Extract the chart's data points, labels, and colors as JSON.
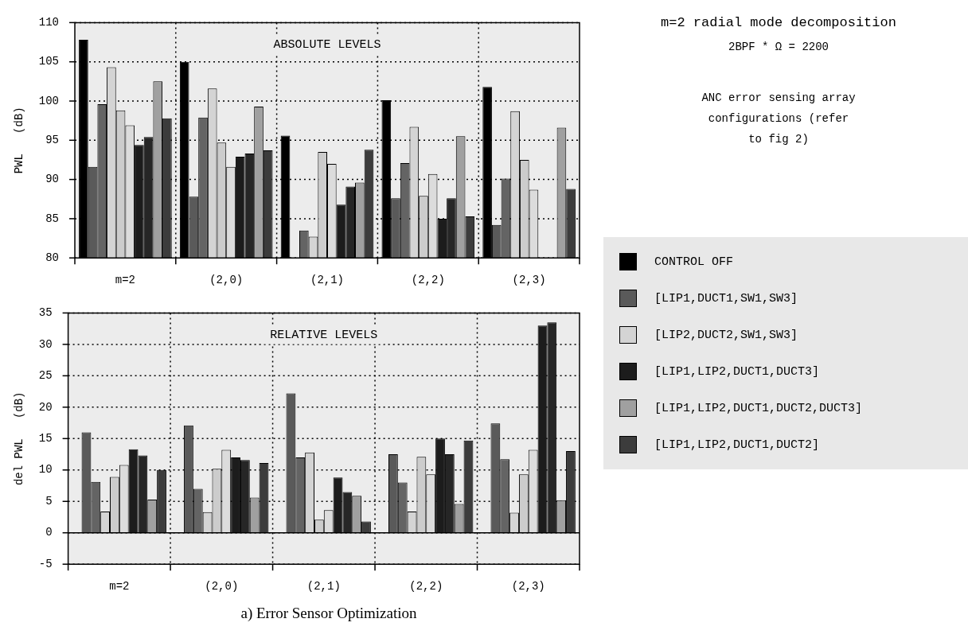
{
  "chart_data": [
    {
      "type": "bar",
      "ylabel": "PWL   (dB)",
      "categories": [
        "m=2",
        "(2,0)",
        "(2,1)",
        "(2,2)",
        "(2,3)"
      ],
      "ylim": [
        80,
        110
      ],
      "yticks": [
        80,
        85,
        90,
        95,
        100,
        105,
        110
      ],
      "grid": true,
      "legend": "right",
      "annotations": [
        "ABSOLUTE LEVELS",
        "m=2 radial mode decomposition",
        "2BPF * Ω = 2200",
        "ANC error sensing array configurations (refer to fig 2)"
      ],
      "series": [
        {
          "name": "CONTROL OFF",
          "color": "#000000",
          "values": [
            107.8,
            105.0,
            95.6,
            100.1,
            101.8
          ]
        },
        {
          "name": "[LIP1,DUCT1,SW1,SW3]",
          "color": "#5a5a5a",
          "values": [
            91.6,
            87.8,
            null,
            87.6,
            84.2
          ]
        },
        {
          "color": "#646464",
          "values": [
            99.6,
            97.9,
            83.5,
            92.1,
            90.1
          ]
        },
        {
          "name": "[LIP2,DUCT2,SW1,SW3]",
          "color": "#d4d4d4",
          "values": [
            104.3,
            101.6,
            82.7,
            96.7,
            98.7
          ]
        },
        {
          "color": "#cccccc",
          "values": [
            98.8,
            94.7,
            93.5,
            87.9,
            92.5
          ]
        },
        {
          "color": "#dcdcdc",
          "values": [
            96.9,
            91.6,
            92.0,
            90.7,
            88.7
          ]
        },
        {
          "name": "[LIP1,LIP2,DUCT1,DUCT3]",
          "color": "#1c1c1c",
          "values": [
            94.4,
            92.9,
            86.8,
            85.0,
            null
          ]
        },
        {
          "color": "#262626",
          "values": [
            95.4,
            93.3,
            89.1,
            87.6,
            null
          ]
        },
        {
          "name": "[LIP1,LIP2,DUCT1,DUCT2,DUCT3]",
          "color": "#a0a0a0",
          "values": [
            102.5,
            99.3,
            89.6,
            95.5,
            96.6
          ]
        },
        {
          "name": "[LIP1,LIP2,DUCT1,DUCT2]",
          "color": "#3c3c3c",
          "values": [
            97.8,
            93.7,
            93.8,
            85.3,
            88.8
          ]
        }
      ]
    },
    {
      "type": "bar",
      "ylabel": "del PWL   (dB)",
      "categories": [
        "m=2",
        "(2,0)",
        "(2,1)",
        "(2,2)",
        "(2,3)"
      ],
      "ylim": [
        -5,
        35
      ],
      "yticks": [
        -5,
        0,
        5,
        10,
        15,
        20,
        25,
        30,
        35
      ],
      "grid": true,
      "annotations": [
        "RELATIVE LEVELS",
        "a) Error Sensor Optimization"
      ],
      "series": [
        {
          "color": "#000000",
          "values": [
            null,
            null,
            null,
            null,
            null
          ]
        },
        {
          "color": "#5a5a5a",
          "values": [
            16.0,
            17.1,
            22.2,
            12.5,
            17.4
          ]
        },
        {
          "color": "#646464",
          "values": [
            8.1,
            7.0,
            12.0,
            8.0,
            11.7
          ]
        },
        {
          "color": "#d4d4d4",
          "values": [
            3.4,
            3.3,
            12.8,
            3.4,
            3.2
          ]
        },
        {
          "color": "#cccccc",
          "values": [
            8.9,
            10.2,
            2.1,
            12.1,
            9.3
          ]
        },
        {
          "color": "#dcdcdc",
          "values": [
            10.8,
            13.2,
            3.6,
            9.3,
            13.2
          ]
        },
        {
          "color": "#1c1c1c",
          "values": [
            13.3,
            12.0,
            8.8,
            15.0,
            33.0
          ]
        },
        {
          "color": "#262626",
          "values": [
            12.3,
            11.6,
            6.5,
            12.5,
            33.5
          ]
        },
        {
          "color": "#a0a0a0",
          "values": [
            5.3,
            5.6,
            5.9,
            4.6,
            5.2
          ]
        },
        {
          "color": "#3c3c3c",
          "values": [
            10.0,
            11.1,
            1.8,
            14.7,
            13.0
          ]
        }
      ]
    }
  ]
}
